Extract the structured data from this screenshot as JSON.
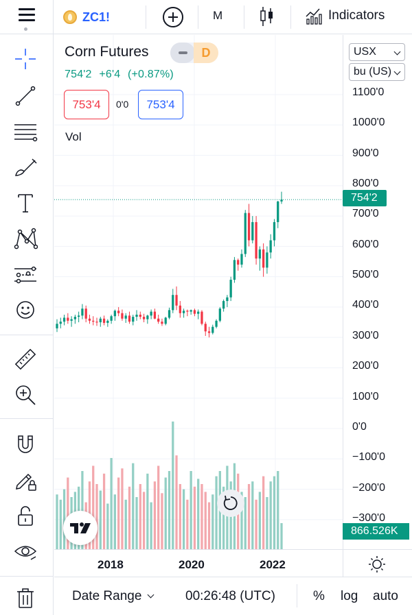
{
  "toolbar": {
    "symbol": "ZC1!",
    "interval": "M",
    "indicators_label": "Indicators"
  },
  "legend": {
    "title": "Corn Futures",
    "delay_badge": "D",
    "last": "754'2",
    "change": "+6'4",
    "change_pct": "(+0.87%)",
    "bid": "753'4",
    "spread": "0'0",
    "ask": "753'4",
    "volume_label": "Vol"
  },
  "price_scale": {
    "currency": "USX",
    "unit": "bu (US)",
    "ticks": [
      "1100'0",
      "1000'0",
      "900'0",
      "800'0",
      "700'0",
      "600'0",
      "500'0",
      "400'0",
      "300'0",
      "200'0",
      "100'0",
      "0'0",
      "−100'0",
      "−200'0",
      "−300'0"
    ],
    "last_price_label": "754'2",
    "volume_label": "866.526K"
  },
  "time_scale": {
    "ticks": [
      "2018",
      "2020",
      "2022"
    ]
  },
  "bottom_bar": {
    "date_range": "Date Range",
    "clock": "00:26:48 (UTC)",
    "percent": "%",
    "log": "log",
    "auto": "auto"
  },
  "left_toolbar": {
    "tools": [
      "crosshair-icon",
      "trend-line-icon",
      "fib-retracement-icon",
      "brush-icon",
      "text-icon",
      "pattern-icon",
      "prediction-icon",
      "emoji-icon",
      "ruler-icon",
      "zoom-in-icon",
      "magnet-icon",
      "lock-drawing-icon",
      "unlock-icon",
      "eye-icon",
      "trash-icon"
    ]
  },
  "colors": {
    "up": "#089981",
    "down": "#f23645",
    "up_volume": "#93cfc4",
    "down_volume": "#f3a8ad",
    "accent": "#2962ff"
  },
  "chart_data": {
    "type": "candlestick",
    "title": "Corn Futures",
    "symbol": "ZC1!",
    "interval": "M",
    "x_range": [
      "2016-10",
      "2022-03"
    ],
    "y_range": [
      -300,
      1100
    ],
    "last_price": 754.25,
    "last_volume": 866526,
    "x_ticks": [
      "2018",
      "2020",
      "2022"
    ],
    "series": [
      {
        "name": "price",
        "values": [
          [
            330,
            360,
            318,
            345
          ],
          [
            345,
            365,
            330,
            352
          ],
          [
            352,
            375,
            340,
            365
          ],
          [
            365,
            380,
            345,
            355
          ],
          [
            355,
            370,
            335,
            360
          ],
          [
            360,
            375,
            345,
            368
          ],
          [
            368,
            385,
            350,
            372
          ],
          [
            372,
            410,
            360,
            395
          ],
          [
            395,
            405,
            350,
            362
          ],
          [
            362,
            375,
            345,
            355
          ],
          [
            355,
            370,
            340,
            352
          ],
          [
            352,
            365,
            338,
            350
          ],
          [
            350,
            368,
            335,
            362
          ],
          [
            362,
            372,
            340,
            348
          ],
          [
            348,
            360,
            335,
            355
          ],
          [
            355,
            375,
            345,
            370
          ],
          [
            370,
            392,
            355,
            388
          ],
          [
            388,
            400,
            370,
            380
          ],
          [
            380,
            392,
            355,
            362
          ],
          [
            362,
            380,
            348,
            372
          ],
          [
            372,
            385,
            345,
            352
          ],
          [
            352,
            375,
            340,
            368
          ],
          [
            368,
            390,
            355,
            375
          ],
          [
            375,
            385,
            360,
            368
          ],
          [
            368,
            378,
            350,
            360
          ],
          [
            360,
            375,
            345,
            372
          ],
          [
            372,
            392,
            360,
            385
          ],
          [
            385,
            395,
            360,
            362
          ],
          [
            362,
            375,
            345,
            352
          ],
          [
            352,
            362,
            338,
            345
          ],
          [
            345,
            368,
            340,
            365
          ],
          [
            365,
            398,
            360,
            390
          ],
          [
            390,
            460,
            380,
            440
          ],
          [
            440,
            468,
            390,
            405
          ],
          [
            405,
            420,
            365,
            380
          ],
          [
            380,
            395,
            365,
            388
          ],
          [
            388,
            392,
            370,
            385
          ],
          [
            385,
            392,
            375,
            390
          ],
          [
            390,
            395,
            370,
            378
          ],
          [
            378,
            392,
            360,
            385
          ],
          [
            385,
            390,
            340,
            345
          ],
          [
            345,
            352,
            305,
            320
          ],
          [
            320,
            335,
            300,
            315
          ],
          [
            315,
            342,
            310,
            335
          ],
          [
            335,
            360,
            330,
            355
          ],
          [
            355,
            400,
            350,
            395
          ],
          [
            395,
            425,
            385,
            420
          ],
          [
            420,
            440,
            400,
            432
          ],
          [
            432,
            500,
            420,
            490
          ],
          [
            490,
            565,
            480,
            555
          ],
          [
            555,
            560,
            520,
            540
          ],
          [
            540,
            590,
            530,
            575
          ],
          [
            575,
            720,
            565,
            710
          ],
          [
            710,
            740,
            600,
            620
          ],
          [
            620,
            700,
            610,
            680
          ],
          [
            680,
            700,
            540,
            560
          ],
          [
            560,
            600,
            520,
            590
          ],
          [
            590,
            610,
            500,
            530
          ],
          [
            530,
            600,
            510,
            580
          ],
          [
            580,
            640,
            560,
            620
          ],
          [
            620,
            690,
            600,
            680
          ],
          [
            680,
            750,
            660,
            748
          ],
          [
            748,
            780,
            740,
            754
          ]
        ]
      },
      {
        "name": "volume",
        "values": [
          0.42,
          0.38,
          0.46,
          0.55,
          0.4,
          0.44,
          0.48,
          0.6,
          0.36,
          0.52,
          0.64,
          0.5,
          0.45,
          0.58,
          0.35,
          0.7,
          0.42,
          0.55,
          0.62,
          0.38,
          0.48,
          0.66,
          0.4,
          0.5,
          0.44,
          0.58,
          0.36,
          0.52,
          0.64,
          0.43,
          0.55,
          0.6,
          0.98,
          0.72,
          0.5,
          0.46,
          0.38,
          0.6,
          0.48,
          0.54,
          0.5,
          0.44,
          0.36,
          0.42,
          0.56,
          0.6,
          0.48,
          0.64,
          0.52,
          0.66,
          0.58,
          0.44,
          0.4,
          0.5,
          0.52,
          0.38,
          0.44,
          0.56,
          0.4,
          0.52,
          0.56,
          0.6,
          0.2
        ]
      }
    ]
  }
}
